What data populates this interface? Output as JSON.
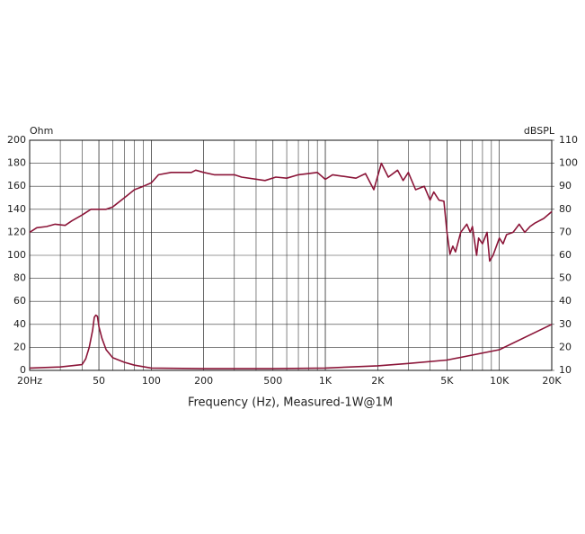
{
  "chart_data": {
    "type": "line",
    "xlabel": "Frequency (Hz), Measured-1W@1M",
    "ylabel": "Ohm",
    "y2label": "dBSPL",
    "xscale": "log",
    "grid": true,
    "xlim": [
      20,
      20000
    ],
    "ylim": [
      0,
      200
    ],
    "y2lim": [
      10,
      110
    ],
    "xticks": [
      {
        "value": 20,
        "label": "20Hz"
      },
      50,
      100,
      200,
      500,
      {
        "value": 1000,
        "label": "1K"
      },
      {
        "value": 2000,
        "label": "2K"
      },
      {
        "value": 5000,
        "label": "5K"
      },
      {
        "value": 10000,
        "label": "10K"
      },
      {
        "value": 20000,
        "label": "20K"
      }
    ],
    "yticks": [
      0,
      20,
      40,
      60,
      80,
      100,
      120,
      140,
      160,
      180,
      200
    ],
    "y2ticks": [
      10,
      20,
      30,
      40,
      50,
      60,
      70,
      80,
      90,
      100,
      110
    ],
    "series": [
      {
        "color": "#8b1538",
        "axis": "y",
        "x": [
          20,
          30,
          40,
          42,
          44,
          46,
          47,
          48,
          49,
          50,
          52,
          55,
          60,
          70,
          80,
          100,
          200,
          500,
          1000,
          2000,
          3000,
          5000,
          10000,
          20000
        ],
        "values": [
          2,
          3,
          5,
          10,
          20,
          35,
          46,
          48,
          47,
          38,
          28,
          18,
          11,
          7,
          4.5,
          2,
          1.5,
          1.5,
          2,
          4,
          6,
          9,
          18,
          40
        ]
      },
      {
        "color": "#8b1538",
        "axis": "y2",
        "x": [
          20,
          22,
          25,
          28,
          32,
          35,
          40,
          45,
          50,
          55,
          60,
          70,
          80,
          90,
          100,
          110,
          130,
          170,
          180,
          200,
          230,
          300,
          330,
          450,
          520,
          600,
          700,
          800,
          900,
          1000,
          1100,
          1500,
          1700,
          1900,
          2100,
          2300,
          2600,
          2800,
          3000,
          3300,
          3700,
          4000,
          4200,
          4500,
          4800,
          5000,
          5200,
          5400,
          5600,
          6000,
          6500,
          6800,
          7000,
          7400,
          7600,
          8000,
          8500,
          8800,
          9200,
          10000,
          10500,
          11000,
          12000,
          13000,
          14000,
          15000,
          16000,
          18000,
          20000
        ],
        "values": [
          70,
          72,
          72.5,
          73.5,
          73,
          75,
          77.5,
          80,
          80,
          80,
          81,
          85,
          88.5,
          90,
          91.5,
          95,
          96,
          96,
          97,
          96,
          95,
          95,
          94,
          92.5,
          94,
          93.5,
          95,
          95.5,
          96,
          93,
          95,
          93.5,
          95.5,
          88.5,
          100,
          94,
          97,
          92.5,
          96,
          88.5,
          90,
          84,
          87.5,
          84,
          83.5,
          70,
          60.5,
          64,
          61.5,
          70,
          73.5,
          70,
          72.5,
          60,
          67.5,
          65,
          70,
          57.5,
          60,
          67.5,
          65,
          69,
          70,
          73.5,
          70,
          72.5,
          74,
          76,
          79
        ]
      }
    ]
  }
}
